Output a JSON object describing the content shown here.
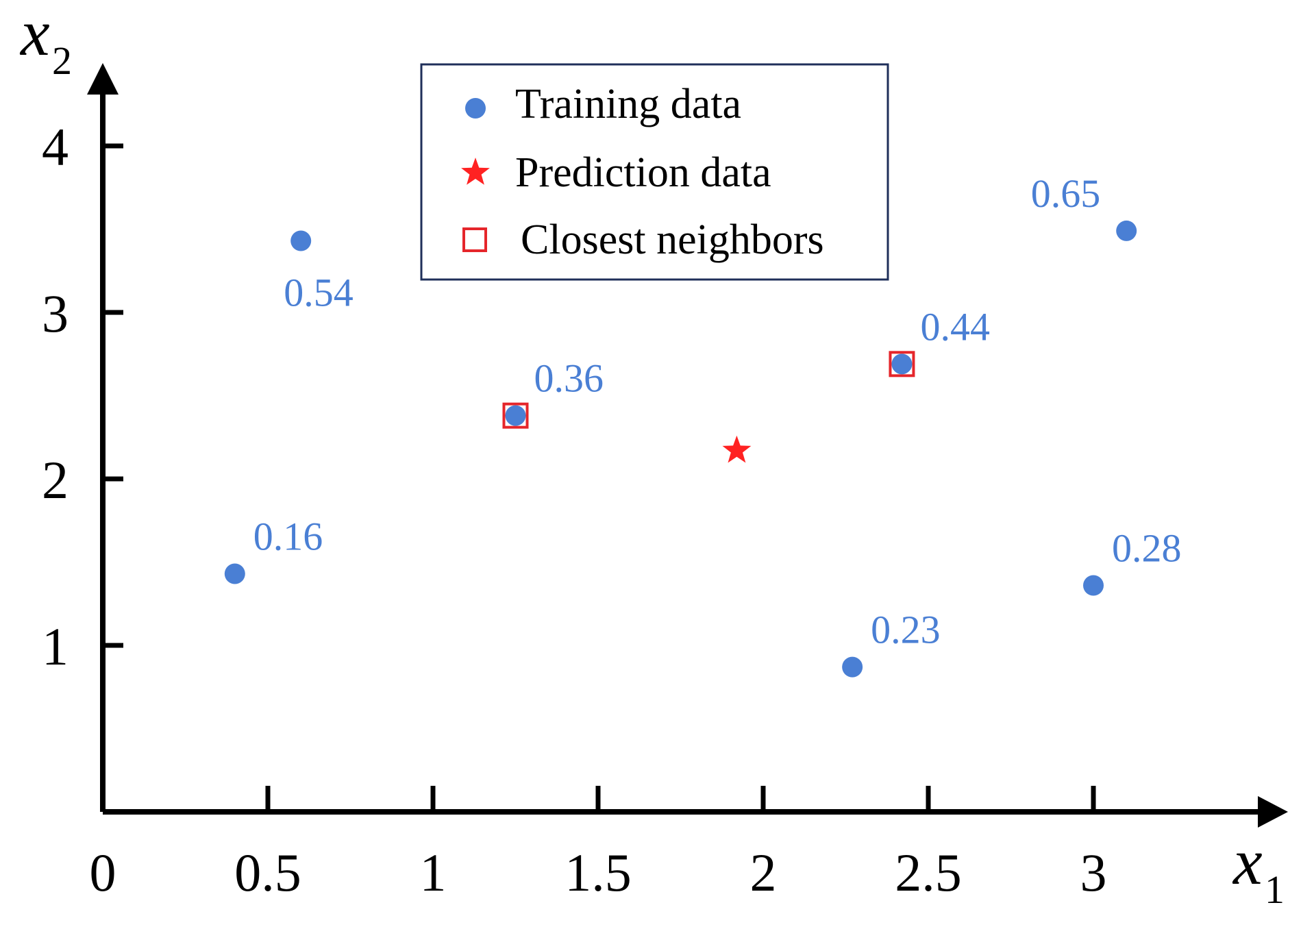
{
  "chart_data": {
    "type": "scatter",
    "title": "",
    "xlabel": "x",
    "xlabel_sub": "1",
    "ylabel": "x",
    "ylabel_sub": "2",
    "xlim": [
      0,
      3.5
    ],
    "ylim": [
      0,
      4.5
    ],
    "xticks": [
      0.5,
      1,
      1.5,
      2,
      2.5,
      3
    ],
    "xtick_labels": [
      "0.5",
      "1",
      "1.5",
      "2",
      "2.5",
      "3"
    ],
    "yticks": [
      1,
      2,
      3,
      4
    ],
    "ytick_labels": [
      "1",
      "2",
      "3",
      "4"
    ],
    "origin_label": "0",
    "grid": false,
    "legend_position": "top-center",
    "colors": {
      "training": "#4a7fd4",
      "prediction": "#ff2222",
      "neighbor": "#e5262b",
      "label": "#4a7fd4",
      "axis": "#000000",
      "legend_border": "#1f2f5a"
    },
    "series": [
      {
        "name": "Training data",
        "marker": "circle",
        "points": [
          {
            "x": 0.4,
            "y": 1.43,
            "label": "0.16",
            "label_pos": "upper-right"
          },
          {
            "x": 0.6,
            "y": 3.43,
            "label": "0.54",
            "label_pos": "below"
          },
          {
            "x": 1.25,
            "y": 2.38,
            "label": "0.36",
            "label_pos": "upper-right"
          },
          {
            "x": 2.42,
            "y": 2.69,
            "label": "0.44",
            "label_pos": "upper-right"
          },
          {
            "x": 2.27,
            "y": 0.87,
            "label": "0.23",
            "label_pos": "upper-right"
          },
          {
            "x": 3.0,
            "y": 1.36,
            "label": "0.28",
            "label_pos": "upper-right"
          },
          {
            "x": 3.1,
            "y": 3.49,
            "label": "0.65",
            "label_pos": "upper-left"
          }
        ]
      },
      {
        "name": "Prediction data",
        "marker": "star",
        "points": [
          {
            "x": 1.92,
            "y": 2.17
          }
        ]
      },
      {
        "name": "Closest neighbors",
        "marker": "square-open",
        "points": [
          {
            "x": 1.25,
            "y": 2.38
          },
          {
            "x": 2.42,
            "y": 2.69
          }
        ]
      }
    ]
  }
}
